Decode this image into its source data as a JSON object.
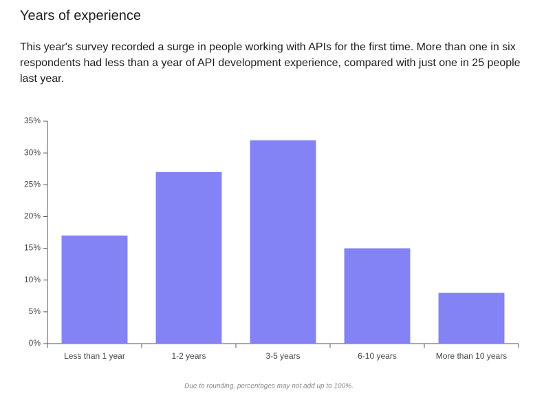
{
  "chart_data": {
    "type": "bar",
    "title": "Years of experience",
    "subtitle": "This year's survey recorded a surge in people working with APIs for the first time. More than one in six respondents had less than a year of API development experience, compared with just one in 25 people last year.",
    "categories": [
      "Less than 1 year",
      "1-2 years",
      "3-5 years",
      "6-10 years",
      "More than 10 years"
    ],
    "values": [
      17,
      27,
      32,
      15,
      8
    ],
    "color": "#8383f5",
    "ylim": [
      0,
      35
    ],
    "yticks": [
      {
        "value": 0,
        "label": "0%"
      },
      {
        "value": 5,
        "label": "5%"
      },
      {
        "value": 10,
        "label": "10%"
      },
      {
        "value": 15,
        "label": "15%"
      },
      {
        "value": 20,
        "label": "20%"
      },
      {
        "value": 25,
        "label": "25%"
      },
      {
        "value": 30,
        "label": "30%"
      },
      {
        "value": 35,
        "label": "35%"
      }
    ],
    "note": "Due to rounding, percentages may not add up to 100%."
  }
}
